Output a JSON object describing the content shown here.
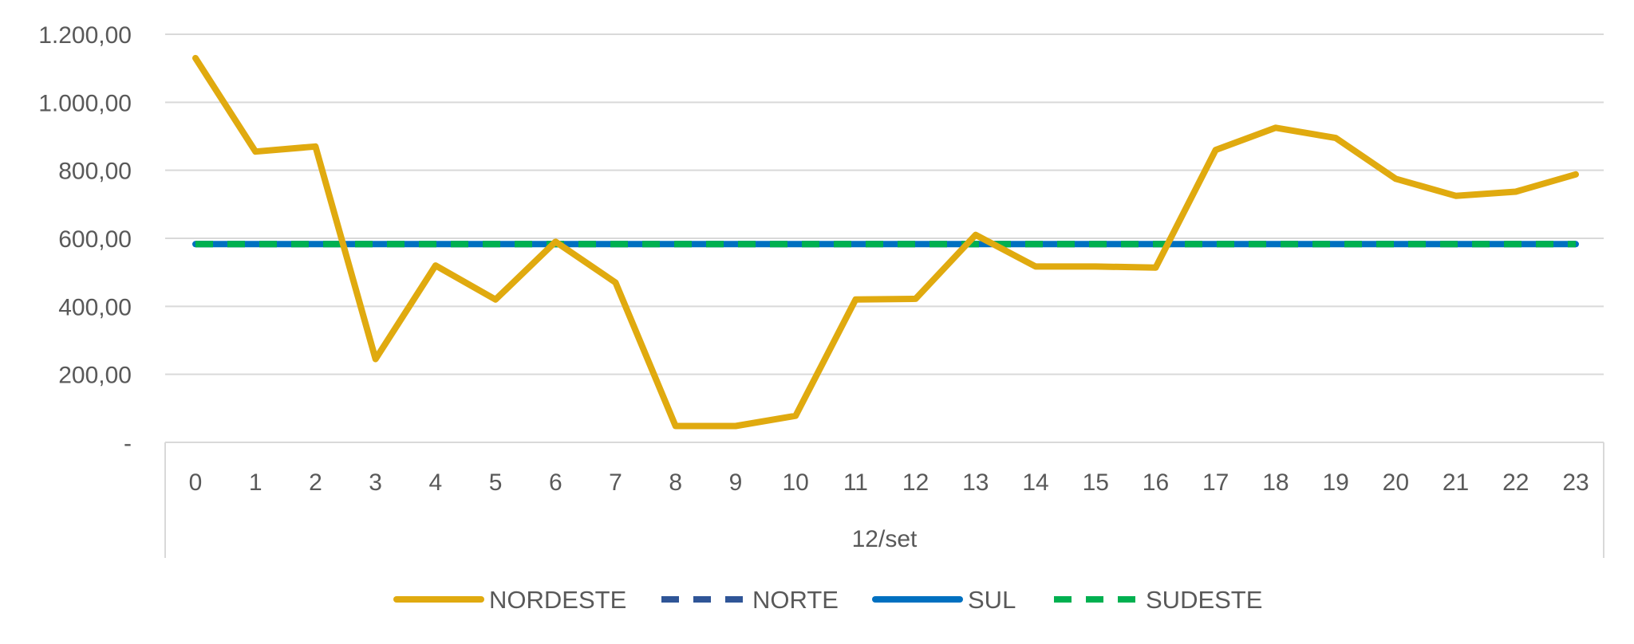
{
  "chart_data": {
    "type": "line",
    "x": [
      "0",
      "1",
      "2",
      "3",
      "4",
      "5",
      "6",
      "7",
      "8",
      "9",
      "10",
      "11",
      "12",
      "13",
      "14",
      "15",
      "16",
      "17",
      "18",
      "19",
      "20",
      "21",
      "22",
      "23"
    ],
    "group_label": "12/set",
    "y_ticks": [
      {
        "value": 0,
        "label": "-"
      },
      {
        "value": 200,
        "label": "200,00"
      },
      {
        "value": 400,
        "label": "400,00"
      },
      {
        "value": 600,
        "label": "600,00"
      },
      {
        "value": 800,
        "label": "800,00"
      },
      {
        "value": 1000,
        "label": "1.000,00"
      },
      {
        "value": 1200,
        "label": "1.200,00"
      }
    ],
    "ylim": [
      0,
      1200
    ],
    "grid": true,
    "legend_position": "bottom",
    "series": [
      {
        "name": "NORDESTE",
        "color": "#E0AA0F",
        "dash": "solid",
        "values": [
          1130,
          855,
          870,
          245,
          520,
          420,
          590,
          470,
          48,
          48,
          78,
          420,
          422,
          610,
          517,
          517,
          514,
          860,
          925,
          895,
          775,
          725,
          737,
          788
        ]
      },
      {
        "name": "NORTE",
        "color": "#2F5597",
        "dash": "dash",
        "values": [
          583,
          583,
          583,
          583,
          583,
          583,
          583,
          583,
          583,
          583,
          583,
          583,
          583,
          583,
          583,
          583,
          583,
          583,
          583,
          583,
          583,
          583,
          583,
          583
        ]
      },
      {
        "name": "SUL",
        "color": "#0070C0",
        "dash": "solid",
        "values": [
          583,
          583,
          583,
          583,
          583,
          583,
          583,
          583,
          583,
          583,
          583,
          583,
          583,
          583,
          583,
          583,
          583,
          583,
          583,
          583,
          583,
          583,
          583,
          583
        ]
      },
      {
        "name": "SUDESTE",
        "color": "#00B050",
        "dash": "dash",
        "values": [
          583,
          583,
          583,
          583,
          583,
          583,
          583,
          583,
          583,
          583,
          583,
          583,
          583,
          583,
          583,
          583,
          583,
          583,
          583,
          583,
          583,
          583,
          583,
          583
        ]
      }
    ],
    "draw_order": [
      "NORTE",
      "SUL",
      "SUDESTE",
      "NORDESTE"
    ]
  }
}
